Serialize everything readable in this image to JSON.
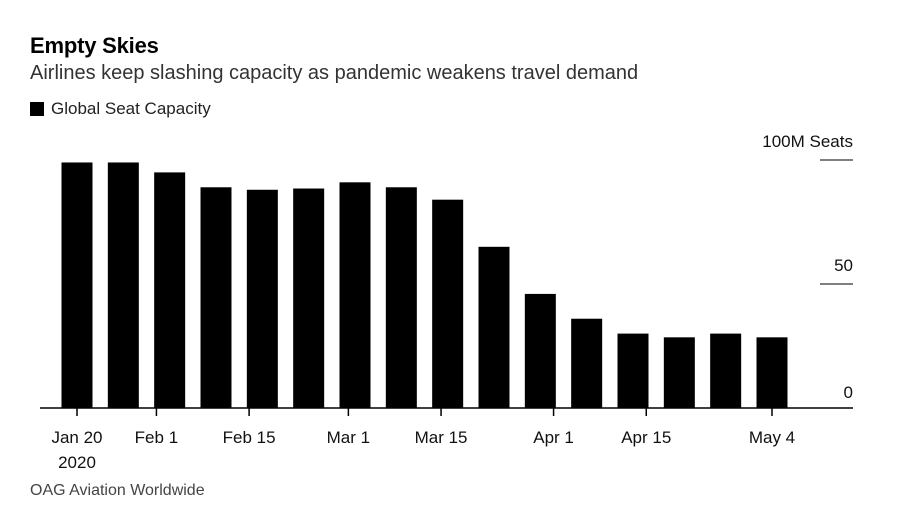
{
  "chart_data": {
    "type": "bar",
    "title": "Empty Skies",
    "subtitle": "Airlines keep slashing capacity as pandemic weakens travel demand",
    "series": [
      {
        "name": "Global Seat Capacity",
        "color": "#000000",
        "values": [
          99,
          99,
          95,
          89,
          88,
          88.5,
          91,
          89,
          84,
          65,
          46,
          36,
          30,
          28.5,
          30,
          28.5
        ]
      }
    ],
    "categories": [
      "2020-01-20",
      "2020-01-27",
      "2020-02-03",
      "2020-02-10",
      "2020-02-17",
      "2020-02-24",
      "2020-03-02",
      "2020-03-09",
      "2020-03-16",
      "2020-03-23",
      "2020-03-30",
      "2020-04-06",
      "2020-04-13",
      "2020-04-20",
      "2020-04-27",
      "2020-05-04"
    ],
    "x_ticks": [
      {
        "label": "Jan 20",
        "sublabel": "2020",
        "at": "2020-01-20"
      },
      {
        "label": "Feb 1",
        "at": "2020-02-01"
      },
      {
        "label": "Feb 15",
        "at": "2020-02-15"
      },
      {
        "label": "Mar 1",
        "at": "2020-03-01"
      },
      {
        "label": "Mar 15",
        "at": "2020-03-15"
      },
      {
        "label": "Apr 1",
        "at": "2020-04-01"
      },
      {
        "label": "Apr 15",
        "at": "2020-04-15"
      },
      {
        "label": "May 4",
        "at": "2020-05-04"
      }
    ],
    "y_ticks": [
      {
        "value": 0,
        "label": "0"
      },
      {
        "value": 50,
        "label": "50"
      },
      {
        "value": 100,
        "label": "100M Seats"
      }
    ],
    "ylim": [
      0,
      100
    ],
    "xlabel": "",
    "ylabel": "",
    "grid": false,
    "legend_position": "top-left",
    "y_axis_position": "right"
  },
  "source": "OAG Aviation Worldwide"
}
